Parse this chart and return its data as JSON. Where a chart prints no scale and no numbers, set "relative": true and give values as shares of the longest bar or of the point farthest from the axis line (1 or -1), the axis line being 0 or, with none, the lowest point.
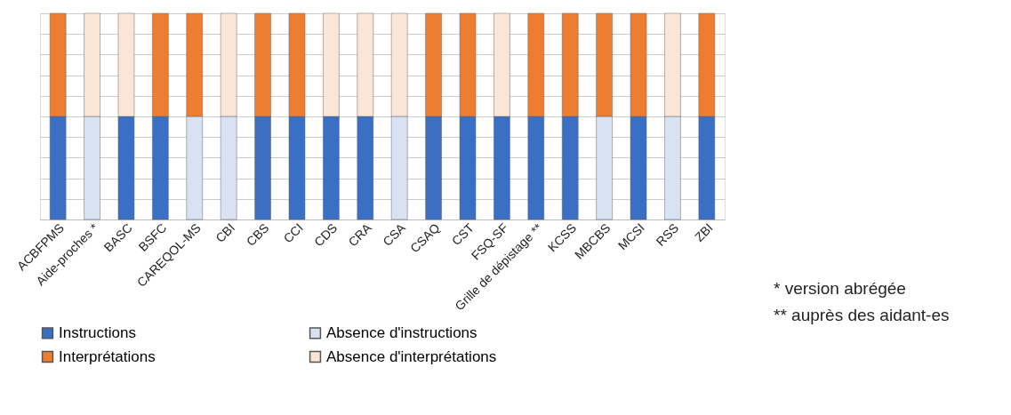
{
  "chart_data": {
    "type": "bar",
    "stacked": true,
    "relative": true,
    "grid": "y",
    "legend": "bottom",
    "categories": [
      "ACBFPMS",
      "Aide-proches *",
      "BASC",
      "BSFC",
      "CAREQOL-MS",
      "CBI",
      "CBS",
      "CCI",
      "CDS",
      "CRA",
      "CSA",
      "CSAQ",
      "CST",
      "FSQ-SF",
      "Grille de dépistage **",
      "KCSS",
      "MBCBS",
      "MCSI",
      "RSS",
      "ZBI"
    ],
    "series": [
      {
        "name": "Instructions",
        "color": "#3a6fc4",
        "values": [
          0.5,
          null,
          0.5,
          0.5,
          null,
          null,
          0.5,
          0.5,
          0.5,
          0.5,
          null,
          0.5,
          0.5,
          0.5,
          0.5,
          0.5,
          null,
          0.5,
          null,
          0.5
        ]
      },
      {
        "name": "Absence d'instructions",
        "color": "#d9e2f3",
        "values": [
          null,
          0.5,
          null,
          null,
          0.5,
          0.5,
          null,
          null,
          null,
          null,
          0.5,
          null,
          null,
          null,
          null,
          null,
          0.5,
          null,
          0.5,
          null
        ]
      },
      {
        "name": "Interprétations",
        "color": "#ed7d31",
        "values": [
          0.5,
          null,
          null,
          0.5,
          0.5,
          null,
          0.5,
          0.5,
          null,
          null,
          null,
          0.5,
          0.5,
          null,
          0.5,
          0.5,
          0.5,
          0.5,
          null,
          0.5
        ]
      },
      {
        "name": "Absence d'interprétations",
        "color": "#fbe5d6",
        "values": [
          null,
          0.5,
          0.5,
          null,
          null,
          0.5,
          null,
          null,
          0.5,
          0.5,
          0.5,
          null,
          null,
          0.5,
          null,
          null,
          null,
          null,
          0.5,
          null
        ]
      }
    ],
    "annotations": [
      "* version abrégée",
      "** auprès des aidant-es"
    ]
  }
}
